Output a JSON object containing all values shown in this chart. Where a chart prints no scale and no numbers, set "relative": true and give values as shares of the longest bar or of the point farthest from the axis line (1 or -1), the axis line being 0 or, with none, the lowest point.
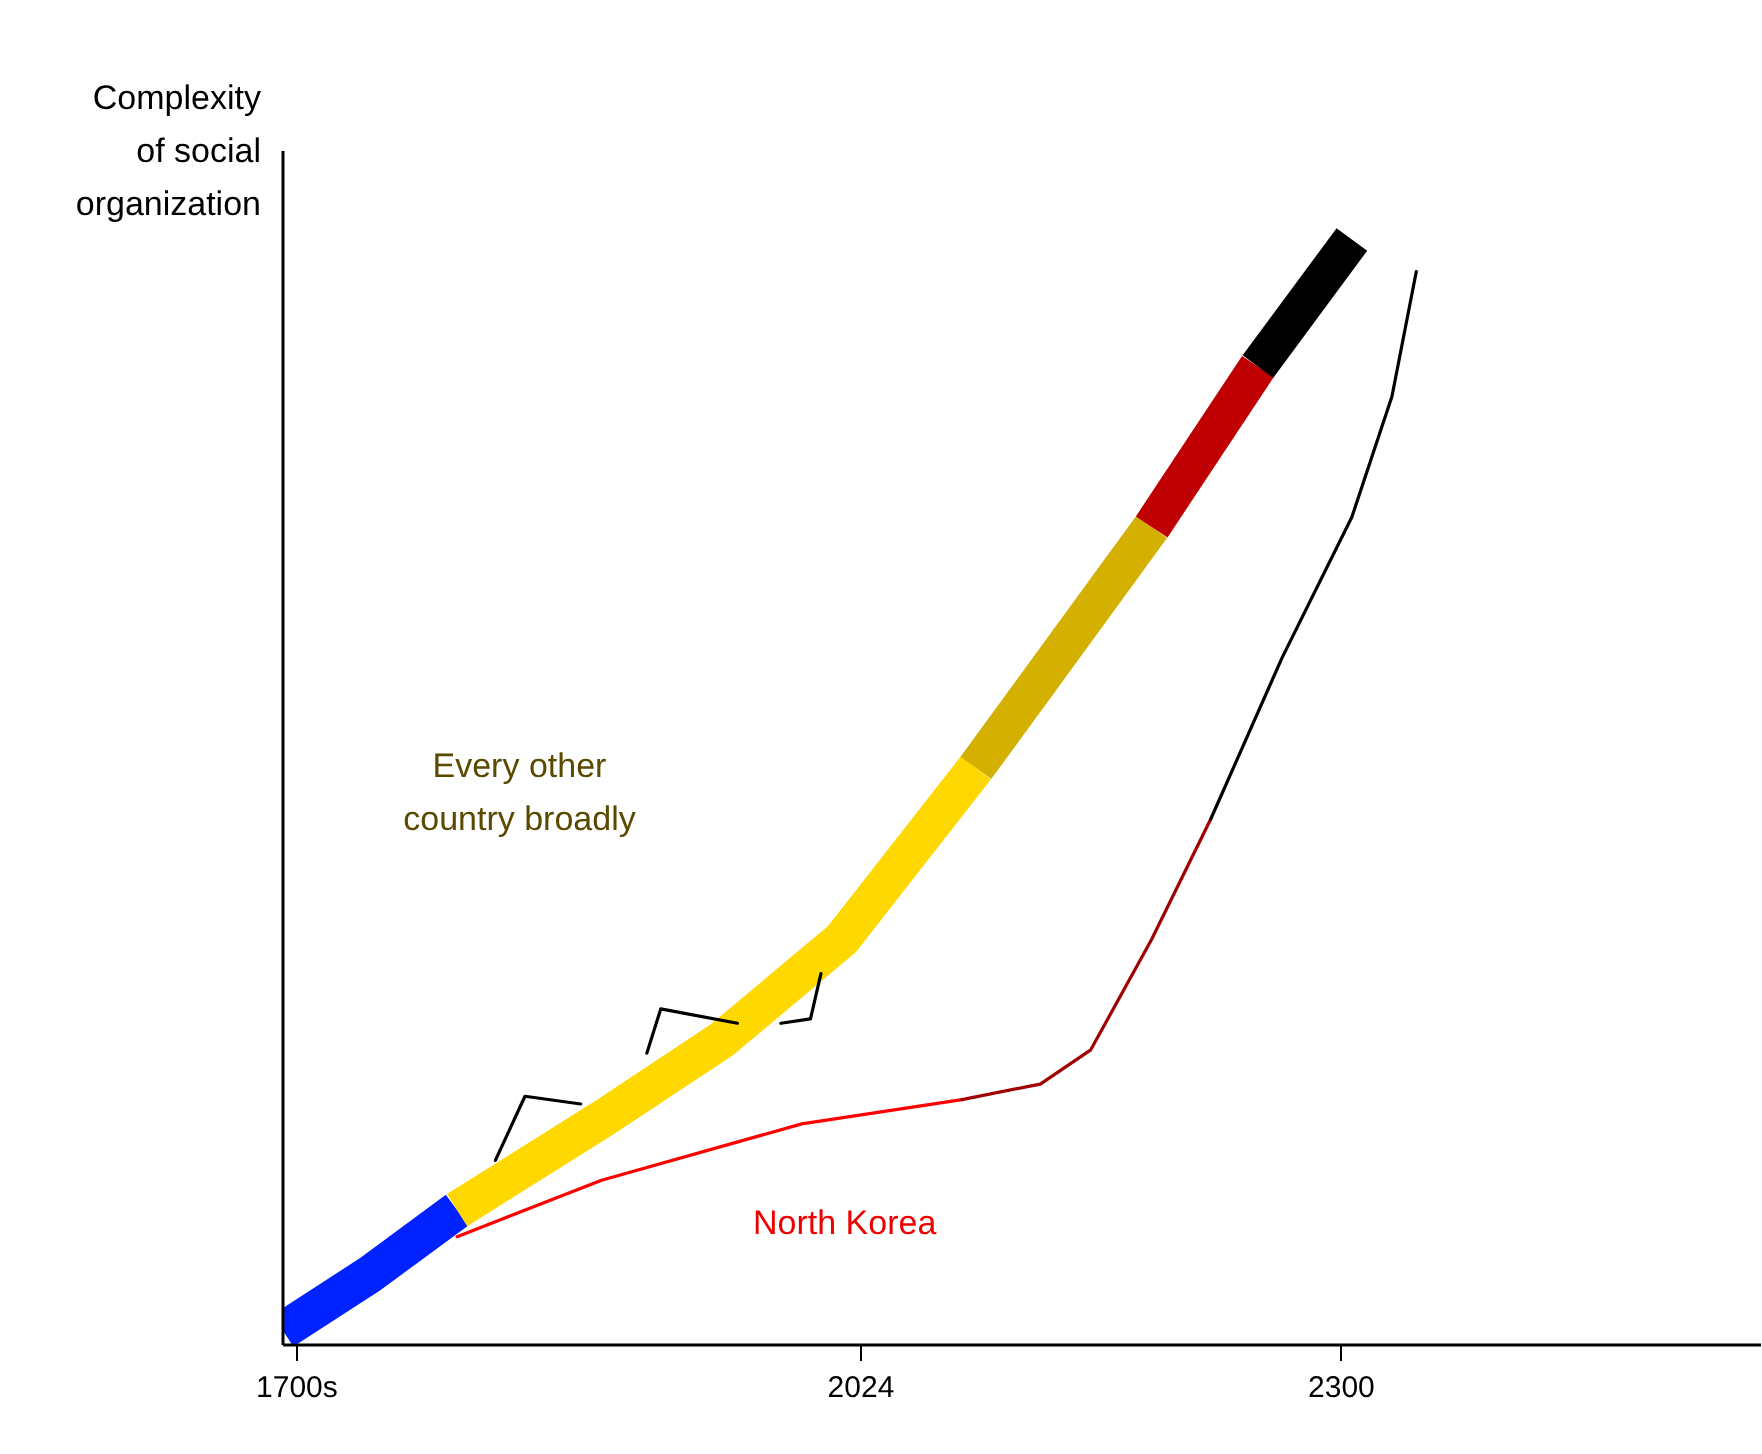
{
  "chart_data": {
    "type": "line",
    "relative": true,
    "ylabel": "Complexity of social organization",
    "xlim": [
      1692,
      2541
    ],
    "xticks": [
      {
        "value": 1700,
        "label": "1700s"
      },
      2024,
      2300
    ],
    "grid": false,
    "marker": "none",
    "line_style": "solid",
    "series": [
      {
        "color": "#0022ff",
        "x": [
          1692,
          1742,
          1792
        ],
        "values": [
          0.013,
          0.064,
          0.122
        ]
      },
      {
        "color": "#ffd800",
        "x": [
          1792,
          1875,
          1944,
          2013,
          2090
        ],
        "values": [
          0.122,
          0.204,
          0.276,
          0.367,
          0.522
        ]
      },
      {
        "color": "#d4b000",
        "x": [
          2090,
          2191
        ],
        "values": [
          0.522,
          0.74
        ]
      },
      {
        "color": "#c00000",
        "x": [
          2191,
          2252
        ],
        "values": [
          0.74,
          0.885
        ]
      },
      {
        "color": "#000000",
        "x": [
          2252,
          2306
        ],
        "values": [
          0.885,
          1.0
        ]
      },
      {
        "color": "#ff0000",
        "x": [
          1792,
          1875,
          1990,
          2082
        ],
        "values": [
          0.098,
          0.149,
          0.2,
          0.222
        ]
      },
      {
        "color": "#a00000",
        "x": [
          2082,
          2127,
          2156,
          2191,
          2225
        ],
        "values": [
          0.222,
          0.236,
          0.267,
          0.367,
          0.476
        ]
      },
      {
        "color": "#000000",
        "x": [
          2225,
          2266,
          2306,
          2329,
          2343
        ],
        "values": [
          0.476,
          0.622,
          0.749,
          0.858,
          0.971
        ]
      },
      {
        "color": "#000000",
        "x": [
          1814,
          1831,
          1863
        ],
        "values": [
          0.167,
          0.225,
          0.218
        ]
      },
      {
        "color": "#000000",
        "x": [
          1901,
          1909,
          1953
        ],
        "values": [
          0.264,
          0.304,
          0.291
        ]
      },
      {
        "color": "#000000",
        "x": [
          1978,
          1995,
          2001
        ],
        "values": [
          0.291,
          0.295,
          0.336
        ]
      }
    ],
    "annotations": [
      "Every other country broadly",
      "North Korea"
    ]
  }
}
